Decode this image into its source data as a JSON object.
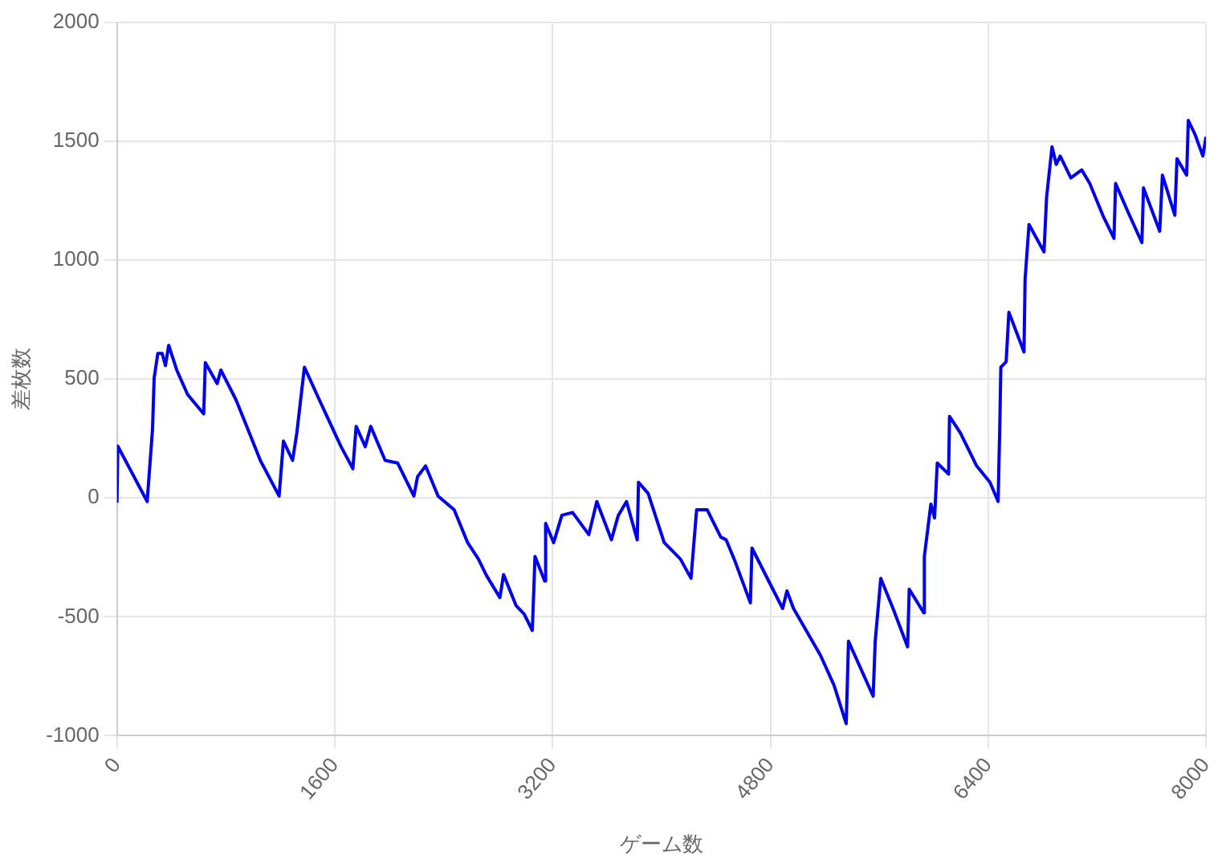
{
  "chart_data": {
    "type": "line",
    "xlabel": "ゲーム数",
    "ylabel": "差枚数",
    "xlim": [
      0,
      8000
    ],
    "xticks": [
      0,
      1600,
      3200,
      4800,
      6400,
      8000
    ],
    "ylim": [
      -1000,
      2000
    ],
    "yticks": [
      -1000,
      -500,
      0,
      500,
      1000,
      1500,
      2000
    ],
    "grid": true,
    "legend": false,
    "marker": "none",
    "line_style": "solid",
    "series": [
      {
        "color": "#0000ee",
        "x": [
          0,
          6,
          222,
          234,
          261,
          273,
          300,
          332,
          356,
          380,
          439,
          519,
          637,
          649,
          736,
          763,
          875,
          973,
          1053,
          1191,
          1223,
          1290,
          1321,
          1377,
          1487,
          1646,
          1733,
          1757,
          1824,
          1864,
          1970,
          2062,
          2181,
          2208,
          2267,
          2359,
          2477,
          2576,
          2655,
          2715,
          2813,
          2840,
          2932,
          2991,
          3051,
          3071,
          3142,
          3149,
          3208,
          3268,
          3347,
          3466,
          3525,
          3632,
          3683,
          3743,
          3822,
          3831,
          3902,
          4020,
          4139,
          4217,
          4258,
          4336,
          4436,
          4475,
          4534,
          4653,
          4665,
          4890,
          4922,
          4970,
          5167,
          5267,
          5357,
          5374,
          5555,
          5570,
          5611,
          5701,
          5808,
          5820,
          5927,
          5931,
          5979,
          6006,
          6026,
          6109,
          6116,
          6196,
          6315,
          6413,
          6473,
          6485,
          6493,
          6532,
          6552,
          6663,
          6671,
          6700,
          6810,
          6829,
          6869,
          6900,
          6929,
          7007,
          7087,
          7146,
          7245,
          7324,
          7336,
          7423,
          7529,
          7541,
          7660,
          7680,
          7771,
          7787,
          7858,
          7870,
          7918,
          7977,
          8000
        ],
        "values": [
          -20,
          218,
          -15,
          80,
          288,
          504,
          608,
          608,
          557,
          642,
          538,
          435,
          354,
          569,
          481,
          538,
          412,
          273,
          158,
          8,
          239,
          158,
          273,
          550,
          412,
          216,
          123,
          301,
          216,
          301,
          158,
          147,
          8,
          89,
          135,
          8,
          -50,
          -188,
          -257,
          -327,
          -419,
          -322,
          -453,
          -488,
          -557,
          -246,
          -349,
          -107,
          -188,
          -73,
          -61,
          -154,
          -15,
          -176,
          -73,
          -15,
          -176,
          66,
          19,
          -188,
          -257,
          -338,
          -50,
          -50,
          -165,
          -176,
          -257,
          -441,
          -211,
          -465,
          -391,
          -465,
          -661,
          -787,
          -949,
          -603,
          -834,
          -603,
          -338,
          -465,
          -626,
          -384,
          -483,
          -246,
          -26,
          -84,
          147,
          100,
          343,
          273,
          135,
          66,
          -15,
          296,
          550,
          573,
          781,
          614,
          919,
          1150,
          1035,
          1265,
          1477,
          1403,
          1438,
          1346,
          1380,
          1323,
          1185,
          1092,
          1323,
          1208,
          1074,
          1304,
          1122,
          1358,
          1189,
          1427,
          1358,
          1588,
          1531,
          1438,
          1519
        ]
      }
    ]
  }
}
